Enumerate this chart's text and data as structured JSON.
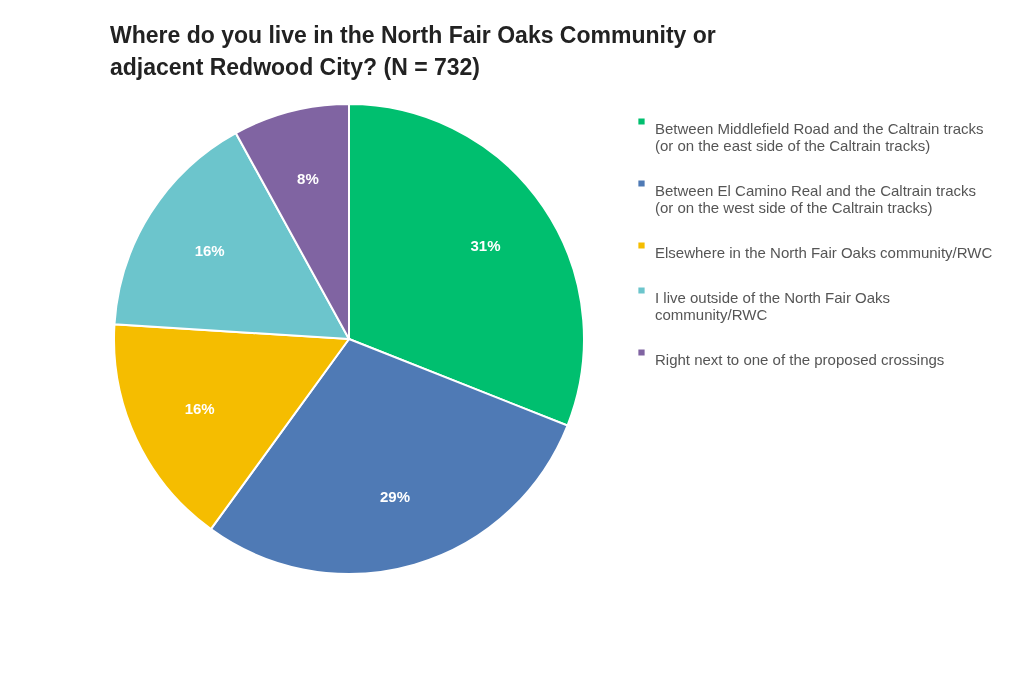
{
  "chart_data": {
    "type": "pie",
    "title": "Where do you live in the North Fair Oaks Community or adjacent Redwood City? (N = 732)",
    "categories": [
      "Between Middlefield Road and the Caltrain tracks (or on the east side of the Caltrain tracks)",
      "Between El Camino Real and the Caltrain tracks (or on the west side of the Caltrain tracks)",
      "Elsewhere in the North Fair Oaks community/RWC",
      "I live outside of the North Fair Oaks community/RWC",
      "Right next to one of the proposed crossings"
    ],
    "values": [
      31,
      29,
      16,
      16,
      8
    ],
    "colors": [
      "#00bf6f",
      "#4f7ab5",
      "#f5bd00",
      "#6cc5cc",
      "#8064a2"
    ],
    "value_labels": [
      "31%",
      "29%",
      "16%",
      "16%",
      "8%"
    ],
    "legend": "right"
  }
}
